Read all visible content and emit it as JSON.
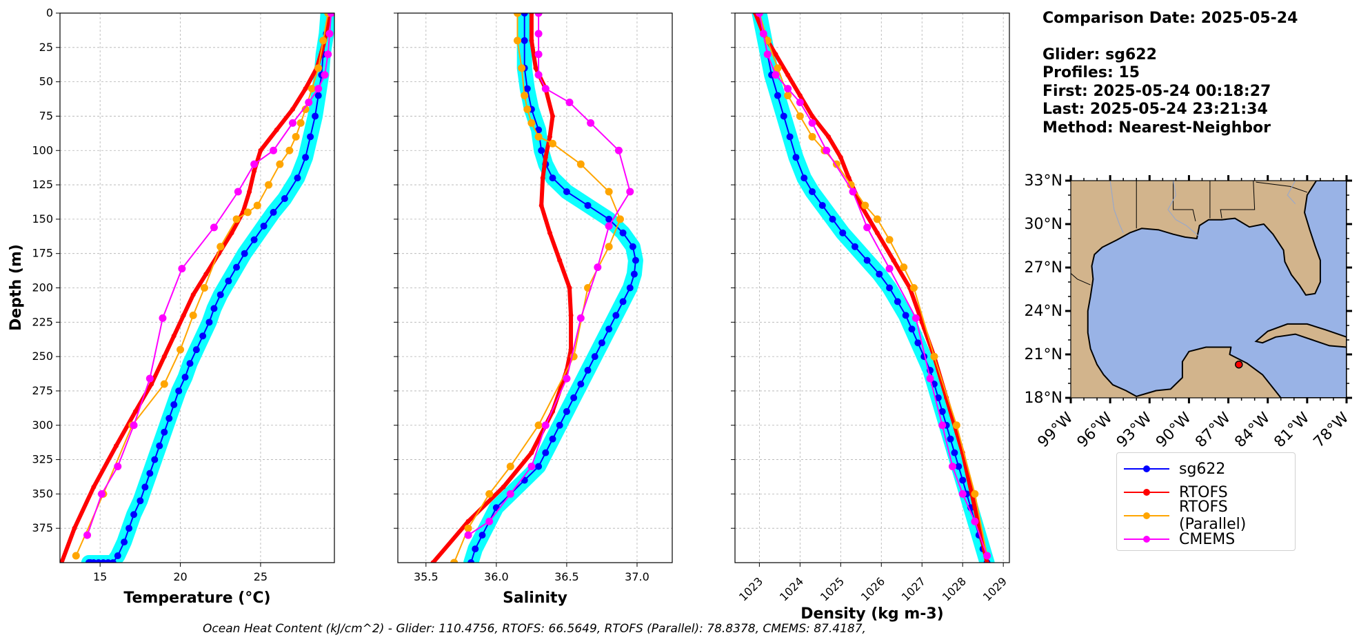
{
  "info": {
    "comparison_date": "Comparison Date: 2025-05-24",
    "glider": "Glider: sg622",
    "profiles": "Profiles: 15",
    "first": "First: 2025-05-24 00:18:27",
    "last": "Last: 2025-05-24 23:21:34",
    "method": "Method: Nearest-Neighbor"
  },
  "footer": "Ocean Heat Content (kJ/cm^2) - Glider: 110.4756,  RTOFS: 66.5649,  RTOFS (Parallel): 78.8378,  CMEMS: 87.4187,",
  "colors": {
    "glider": "#0000ff",
    "glider_band": "#00ffff",
    "rtofs": "#ff0000",
    "rtofs_parallel": "#ffa500",
    "cmems": "#ff00ff",
    "land": "#d2b48c",
    "water": "#99b3e6",
    "grid": "#b0b0b0"
  },
  "legend": [
    {
      "label": "sg622",
      "color": "#0000ff"
    },
    {
      "label": "RTOFS",
      "color": "#ff0000"
    },
    {
      "label": "RTOFS (Parallel)",
      "color": "#ffa500"
    },
    {
      "label": "CMEMS",
      "color": "#ff00ff"
    }
  ],
  "map": {
    "lat_labels": [
      "33°N",
      "30°N",
      "27°N",
      "24°N",
      "21°N",
      "18°N"
    ],
    "lon_labels": [
      "99°W",
      "96°W",
      "93°W",
      "90°W",
      "87°W",
      "84°W",
      "81°W",
      "78°W"
    ],
    "lon_range": [
      -99,
      -78
    ],
    "lat_range": [
      18,
      33
    ],
    "glider_position": {
      "lon": -86.2,
      "lat": 20.3
    },
    "icons": "gulf-of-mexico-basemap"
  },
  "chart_data": [
    {
      "type": "line",
      "xlabel": "Temperature (°C)",
      "ylabel": "Depth (m)",
      "xlim": [
        12.5,
        29.6
      ],
      "ylim": [
        400,
        0
      ],
      "xticks": [
        15,
        20,
        25
      ],
      "yticks": [
        0,
        25,
        50,
        75,
        100,
        125,
        150,
        175,
        200,
        225,
        250,
        275,
        300,
        325,
        350,
        375
      ],
      "grid": true,
      "series": [
        {
          "name": "sg622",
          "kind": "glider",
          "x": [
            29.2,
            29.1,
            28.9,
            28.8,
            28.6,
            28.4,
            28.1,
            27.8,
            27.3,
            26.5,
            25.8,
            25.2,
            24.6,
            24.0,
            23.5,
            23.0,
            22.5,
            22.1,
            21.8,
            21.4,
            21.0,
            20.6,
            20.3,
            19.9,
            19.6,
            19.3,
            19.0,
            18.7,
            18.4,
            18.1,
            17.8,
            17.5,
            17.1,
            16.8,
            16.5,
            16.1,
            15.8,
            15.5,
            15.2,
            14.9,
            14.6,
            14.4,
            14.3
          ],
          "y": [
            0,
            15,
            30,
            45,
            60,
            75,
            90,
            105,
            120,
            135,
            145,
            155,
            165,
            175,
            185,
            195,
            205,
            215,
            225,
            235,
            245,
            255,
            265,
            275,
            285,
            295,
            305,
            315,
            325,
            335,
            345,
            355,
            365,
            375,
            385,
            395,
            400,
            400,
            400,
            400,
            400,
            400,
            400
          ]
        },
        {
          "name": "RTOFS",
          "kind": "rtofs",
          "x": [
            29.3,
            29.0,
            28.5,
            27.8,
            27.0,
            26.0,
            25.0,
            24.6,
            24.3,
            23.9,
            23.2,
            22.4,
            21.6,
            20.8,
            20.2,
            19.6,
            19.0,
            18.2,
            17.2,
            16.0,
            14.6,
            13.4,
            12.6
          ],
          "y": [
            0,
            20,
            40,
            55,
            70,
            85,
            100,
            115,
            130,
            145,
            160,
            175,
            190,
            205,
            220,
            235,
            250,
            270,
            290,
            315,
            345,
            375,
            400
          ]
        },
        {
          "name": "RTOFS (Parallel)",
          "kind": "rtofs_parallel",
          "x": [
            29.2,
            28.9,
            28.6,
            28.2,
            27.8,
            27.5,
            27.2,
            26.8,
            26.2,
            25.5,
            24.8,
            24.2,
            23.5,
            22.5,
            21.5,
            20.8,
            20.0,
            19.0,
            17.0,
            15.2,
            13.5
          ],
          "y": [
            0,
            20,
            40,
            55,
            70,
            80,
            90,
            100,
            110,
            125,
            140,
            145,
            150,
            170,
            200,
            220,
            245,
            270,
            300,
            350,
            395
          ]
        },
        {
          "name": "CMEMS",
          "kind": "cmems",
          "x": [
            29.4,
            29.3,
            29.2,
            29.0,
            28.6,
            28.0,
            27.0,
            25.8,
            24.6,
            23.6,
            22.1,
            20.1,
            18.9,
            18.1,
            17.1,
            16.1,
            15.1,
            14.2
          ],
          "y": [
            0,
            15,
            30,
            45,
            55,
            65,
            80,
            100,
            110,
            130,
            156,
            186,
            222,
            266,
            300,
            330,
            350,
            380
          ]
        }
      ]
    },
    {
      "type": "line",
      "xlabel": "Salinity",
      "ylabel": "",
      "xlim": [
        35.3,
        37.25
      ],
      "ylim": [
        400,
        0
      ],
      "xticks": [
        35.5,
        36.0,
        36.5,
        37.0
      ],
      "grid": true,
      "series": [
        {
          "name": "sg622",
          "kind": "glider",
          "x": [
            36.2,
            36.2,
            36.2,
            36.22,
            36.25,
            36.3,
            36.32,
            36.35,
            36.4,
            36.5,
            36.65,
            36.8,
            36.9,
            36.97,
            36.99,
            36.98,
            36.95,
            36.9,
            36.85,
            36.8,
            36.75,
            36.7,
            36.65,
            36.6,
            36.55,
            36.5,
            36.45,
            36.4,
            36.35,
            36.3,
            36.2,
            36.1,
            36.0,
            35.95,
            35.9,
            35.85,
            35.82
          ],
          "y": [
            0,
            20,
            40,
            55,
            70,
            85,
            100,
            110,
            120,
            130,
            140,
            150,
            160,
            170,
            180,
            190,
            200,
            210,
            220,
            230,
            240,
            250,
            260,
            270,
            280,
            290,
            300,
            310,
            320,
            330,
            340,
            350,
            360,
            370,
            380,
            390,
            400
          ]
        },
        {
          "name": "RTOFS",
          "kind": "rtofs",
          "x": [
            36.25,
            36.25,
            36.28,
            36.35,
            36.4,
            36.38,
            36.35,
            36.33,
            36.32,
            36.38,
            36.45,
            36.52,
            36.53,
            36.53,
            36.5,
            36.4,
            36.25,
            36.05,
            35.8,
            35.55
          ],
          "y": [
            0,
            20,
            40,
            55,
            75,
            90,
            105,
            120,
            140,
            160,
            180,
            200,
            220,
            245,
            260,
            290,
            320,
            345,
            370,
            400
          ]
        },
        {
          "name": "RTOFS (Parallel)",
          "kind": "rtofs_parallel",
          "x": [
            36.15,
            36.15,
            36.18,
            36.2,
            36.22,
            36.25,
            36.3,
            36.4,
            36.6,
            36.8,
            36.88,
            36.8,
            36.65,
            36.55,
            36.3,
            36.1,
            35.95,
            35.8,
            35.7
          ],
          "y": [
            0,
            20,
            40,
            60,
            70,
            80,
            90,
            95,
            110,
            130,
            150,
            170,
            200,
            250,
            300,
            330,
            350,
            375,
            400
          ]
        },
        {
          "name": "CMEMS",
          "kind": "cmems",
          "x": [
            36.3,
            36.3,
            36.3,
            36.3,
            36.35,
            36.52,
            36.67,
            36.87,
            36.95,
            36.8,
            36.72,
            36.6,
            36.5,
            36.35,
            36.25,
            36.1,
            35.95,
            35.8
          ],
          "y": [
            0,
            15,
            30,
            45,
            55,
            65,
            80,
            100,
            130,
            155,
            185,
            222,
            266,
            300,
            330,
            350,
            370,
            380
          ]
        }
      ]
    },
    {
      "type": "line",
      "xlabel": "Density (kg m-3)",
      "ylabel": "",
      "xlim": [
        1022.4,
        1029.15
      ],
      "ylim": [
        400,
        0
      ],
      "xticks": [
        1023,
        1024,
        1025,
        1026,
        1027,
        1028,
        1029
      ],
      "grid": true,
      "series": [
        {
          "name": "sg622",
          "kind": "glider",
          "x": [
            1023.0,
            1023.1,
            1023.2,
            1023.3,
            1023.45,
            1023.6,
            1023.75,
            1023.9,
            1024.1,
            1024.3,
            1024.55,
            1024.8,
            1025.05,
            1025.35,
            1025.65,
            1025.95,
            1026.2,
            1026.4,
            1026.6,
            1026.75,
            1026.9,
            1027.05,
            1027.2,
            1027.3,
            1027.4,
            1027.5,
            1027.6,
            1027.7,
            1027.8,
            1027.9,
            1028.0,
            1028.1,
            1028.2,
            1028.3,
            1028.4,
            1028.5,
            1028.6
          ],
          "y": [
            0,
            15,
            30,
            45,
            60,
            75,
            90,
            105,
            120,
            130,
            140,
            150,
            160,
            170,
            180,
            190,
            200,
            210,
            220,
            230,
            240,
            250,
            260,
            270,
            280,
            290,
            300,
            310,
            320,
            330,
            340,
            350,
            360,
            370,
            380,
            390,
            400
          ]
        },
        {
          "name": "RTOFS",
          "kind": "rtofs",
          "x": [
            1022.9,
            1023.1,
            1023.4,
            1023.7,
            1024.0,
            1024.3,
            1024.7,
            1025.0,
            1025.2,
            1025.5,
            1025.9,
            1026.3,
            1026.7,
            1027.0,
            1027.3,
            1027.6,
            1028.0,
            1028.3,
            1028.6
          ],
          "y": [
            0,
            15,
            30,
            45,
            60,
            75,
            90,
            105,
            120,
            140,
            160,
            180,
            200,
            225,
            250,
            280,
            320,
            360,
            400
          ]
        },
        {
          "name": "RTOFS (Parallel)",
          "kind": "rtofs_parallel",
          "x": [
            1023.0,
            1023.2,
            1023.45,
            1023.7,
            1024.0,
            1024.3,
            1024.6,
            1024.9,
            1025.25,
            1025.6,
            1025.9,
            1026.2,
            1026.55,
            1026.8,
            1027.3,
            1027.85,
            1028.3,
            1028.6
          ],
          "y": [
            0,
            20,
            40,
            60,
            75,
            90,
            100,
            110,
            125,
            140,
            150,
            165,
            185,
            200,
            250,
            300,
            350,
            395
          ]
        },
        {
          "name": "CMEMS",
          "kind": "cmems",
          "x": [
            1023.0,
            1023.1,
            1023.2,
            1023.4,
            1023.7,
            1024.0,
            1024.3,
            1024.65,
            1025.3,
            1025.65,
            1026.2,
            1026.85,
            1027.2,
            1027.5,
            1027.75,
            1028.0,
            1028.3,
            1028.6
          ],
          "y": [
            0,
            15,
            30,
            45,
            55,
            65,
            80,
            100,
            130,
            156,
            186,
            222,
            266,
            300,
            330,
            350,
            370,
            395
          ]
        }
      ]
    }
  ]
}
